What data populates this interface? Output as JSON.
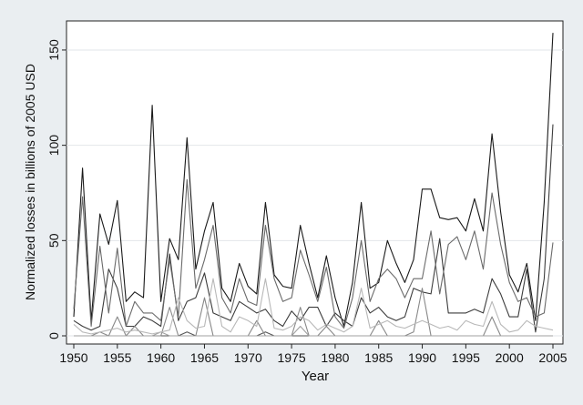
{
  "chart_data": {
    "type": "line",
    "title": "",
    "xlabel": "Year",
    "ylabel": "Normalized losses in billions of 2005 USD",
    "xlim": [
      1950,
      2005
    ],
    "ylim": [
      0,
      160
    ],
    "x_ticks": [
      1950,
      1955,
      1960,
      1965,
      1970,
      1975,
      1980,
      1985,
      1990,
      1995,
      2000,
      2005
    ],
    "y_ticks": [
      0,
      50,
      100,
      150
    ],
    "grid": true,
    "legend": "none",
    "x": [
      1950,
      1951,
      1952,
      1953,
      1954,
      1955,
      1956,
      1957,
      1958,
      1959,
      1960,
      1961,
      1962,
      1963,
      1964,
      1965,
      1966,
      1967,
      1968,
      1969,
      1970,
      1971,
      1972,
      1973,
      1974,
      1975,
      1976,
      1977,
      1978,
      1979,
      1980,
      1981,
      1982,
      1983,
      1984,
      1985,
      1986,
      1987,
      1988,
      1989,
      1990,
      1991,
      1992,
      1993,
      1994,
      1995,
      1996,
      1997,
      1998,
      1999,
      2000,
      2001,
      2002,
      2003,
      2004,
      2005
    ],
    "series": [
      {
        "color": "#1a1a1a",
        "values": [
          10,
          88,
          8,
          64,
          48,
          71,
          18,
          23,
          20,
          121,
          18,
          51,
          40,
          104,
          35,
          55,
          70,
          25,
          18,
          38,
          26,
          22,
          70,
          32,
          26,
          25,
          58,
          38,
          20,
          42,
          20,
          5,
          28,
          70,
          25,
          28,
          50,
          38,
          28,
          40,
          77,
          77,
          62,
          61,
          62,
          55,
          72,
          55,
          106,
          65,
          32,
          23,
          38,
          8,
          70,
          159
        ]
      },
      {
        "color": "#3c3c3c",
        "values": [
          8,
          5,
          3,
          5,
          35,
          25,
          5,
          5,
          10,
          8,
          5,
          43,
          8,
          18,
          20,
          33,
          12,
          10,
          8,
          18,
          15,
          12,
          14,
          8,
          5,
          13,
          8,
          15,
          15,
          5,
          12,
          8,
          5,
          20,
          12,
          15,
          10,
          8,
          10,
          25,
          23,
          22,
          51,
          12,
          12,
          12,
          14,
          12,
          30,
          22,
          10,
          10,
          35,
          2,
          30,
          111
        ]
      },
      {
        "color": "#555555",
        "values": [
          0,
          0,
          0,
          0,
          0,
          0,
          0,
          0,
          0,
          0,
          0,
          0,
          0,
          2,
          0,
          0,
          0,
          0,
          0,
          0,
          0,
          0,
          2,
          0,
          0,
          0,
          0,
          0,
          0,
          0,
          0,
          0,
          0,
          0,
          0,
          0,
          0,
          0,
          0,
          0,
          0,
          0,
          0,
          0,
          0,
          0,
          0,
          0,
          0,
          0,
          0,
          0,
          0,
          0,
          0,
          0
        ]
      },
      {
        "color": "#6a6a6a",
        "values": [
          14,
          73,
          5,
          47,
          12,
          46,
          5,
          18,
          12,
          12,
          8,
          40,
          10,
          82,
          25,
          40,
          58,
          20,
          12,
          30,
          18,
          16,
          58,
          30,
          18,
          20,
          45,
          32,
          18,
          36,
          10,
          4,
          20,
          50,
          18,
          30,
          35,
          30,
          20,
          30,
          30,
          55,
          22,
          48,
          52,
          40,
          55,
          35,
          75,
          48,
          28,
          18,
          20,
          10,
          12,
          49
        ]
      },
      {
        "color": "#888888",
        "values": [
          0,
          0,
          0,
          2,
          0,
          10,
          0,
          5,
          0,
          0,
          0,
          15,
          0,
          0,
          0,
          20,
          0,
          0,
          0,
          0,
          0,
          8,
          0,
          0,
          0,
          0,
          15,
          0,
          0,
          5,
          0,
          0,
          0,
          0,
          0,
          8,
          0,
          0,
          0,
          2,
          25,
          0,
          0,
          0,
          0,
          0,
          0,
          0,
          10,
          0,
          0,
          0,
          0,
          0,
          0,
          0
        ]
      },
      {
        "color": "#a0a0a0",
        "values": [
          0,
          0,
          0,
          0,
          0,
          0,
          0,
          0,
          0,
          0,
          2,
          0,
          0,
          0,
          0,
          0,
          0,
          0,
          0,
          0,
          0,
          0,
          0,
          0,
          0,
          0,
          5,
          0,
          0,
          0,
          0,
          0,
          0,
          0,
          0,
          0,
          0,
          0,
          0,
          0,
          0,
          0,
          0,
          0,
          0,
          0,
          0,
          0,
          0,
          0,
          0,
          0,
          0,
          0,
          0,
          0
        ]
      },
      {
        "color": "#b8b8b8",
        "values": [
          6,
          2,
          1,
          2,
          3,
          4,
          2,
          3,
          2,
          1,
          2,
          3,
          20,
          8,
          4,
          5,
          30,
          5,
          2,
          10,
          8,
          5,
          30,
          4,
          3,
          5,
          10,
          8,
          3,
          6,
          4,
          2,
          5,
          25,
          4,
          6,
          8,
          5,
          4,
          6,
          8,
          6,
          4,
          5,
          3,
          8,
          6,
          5,
          18,
          6,
          2,
          3,
          8,
          5,
          4,
          3
        ]
      }
    ]
  }
}
